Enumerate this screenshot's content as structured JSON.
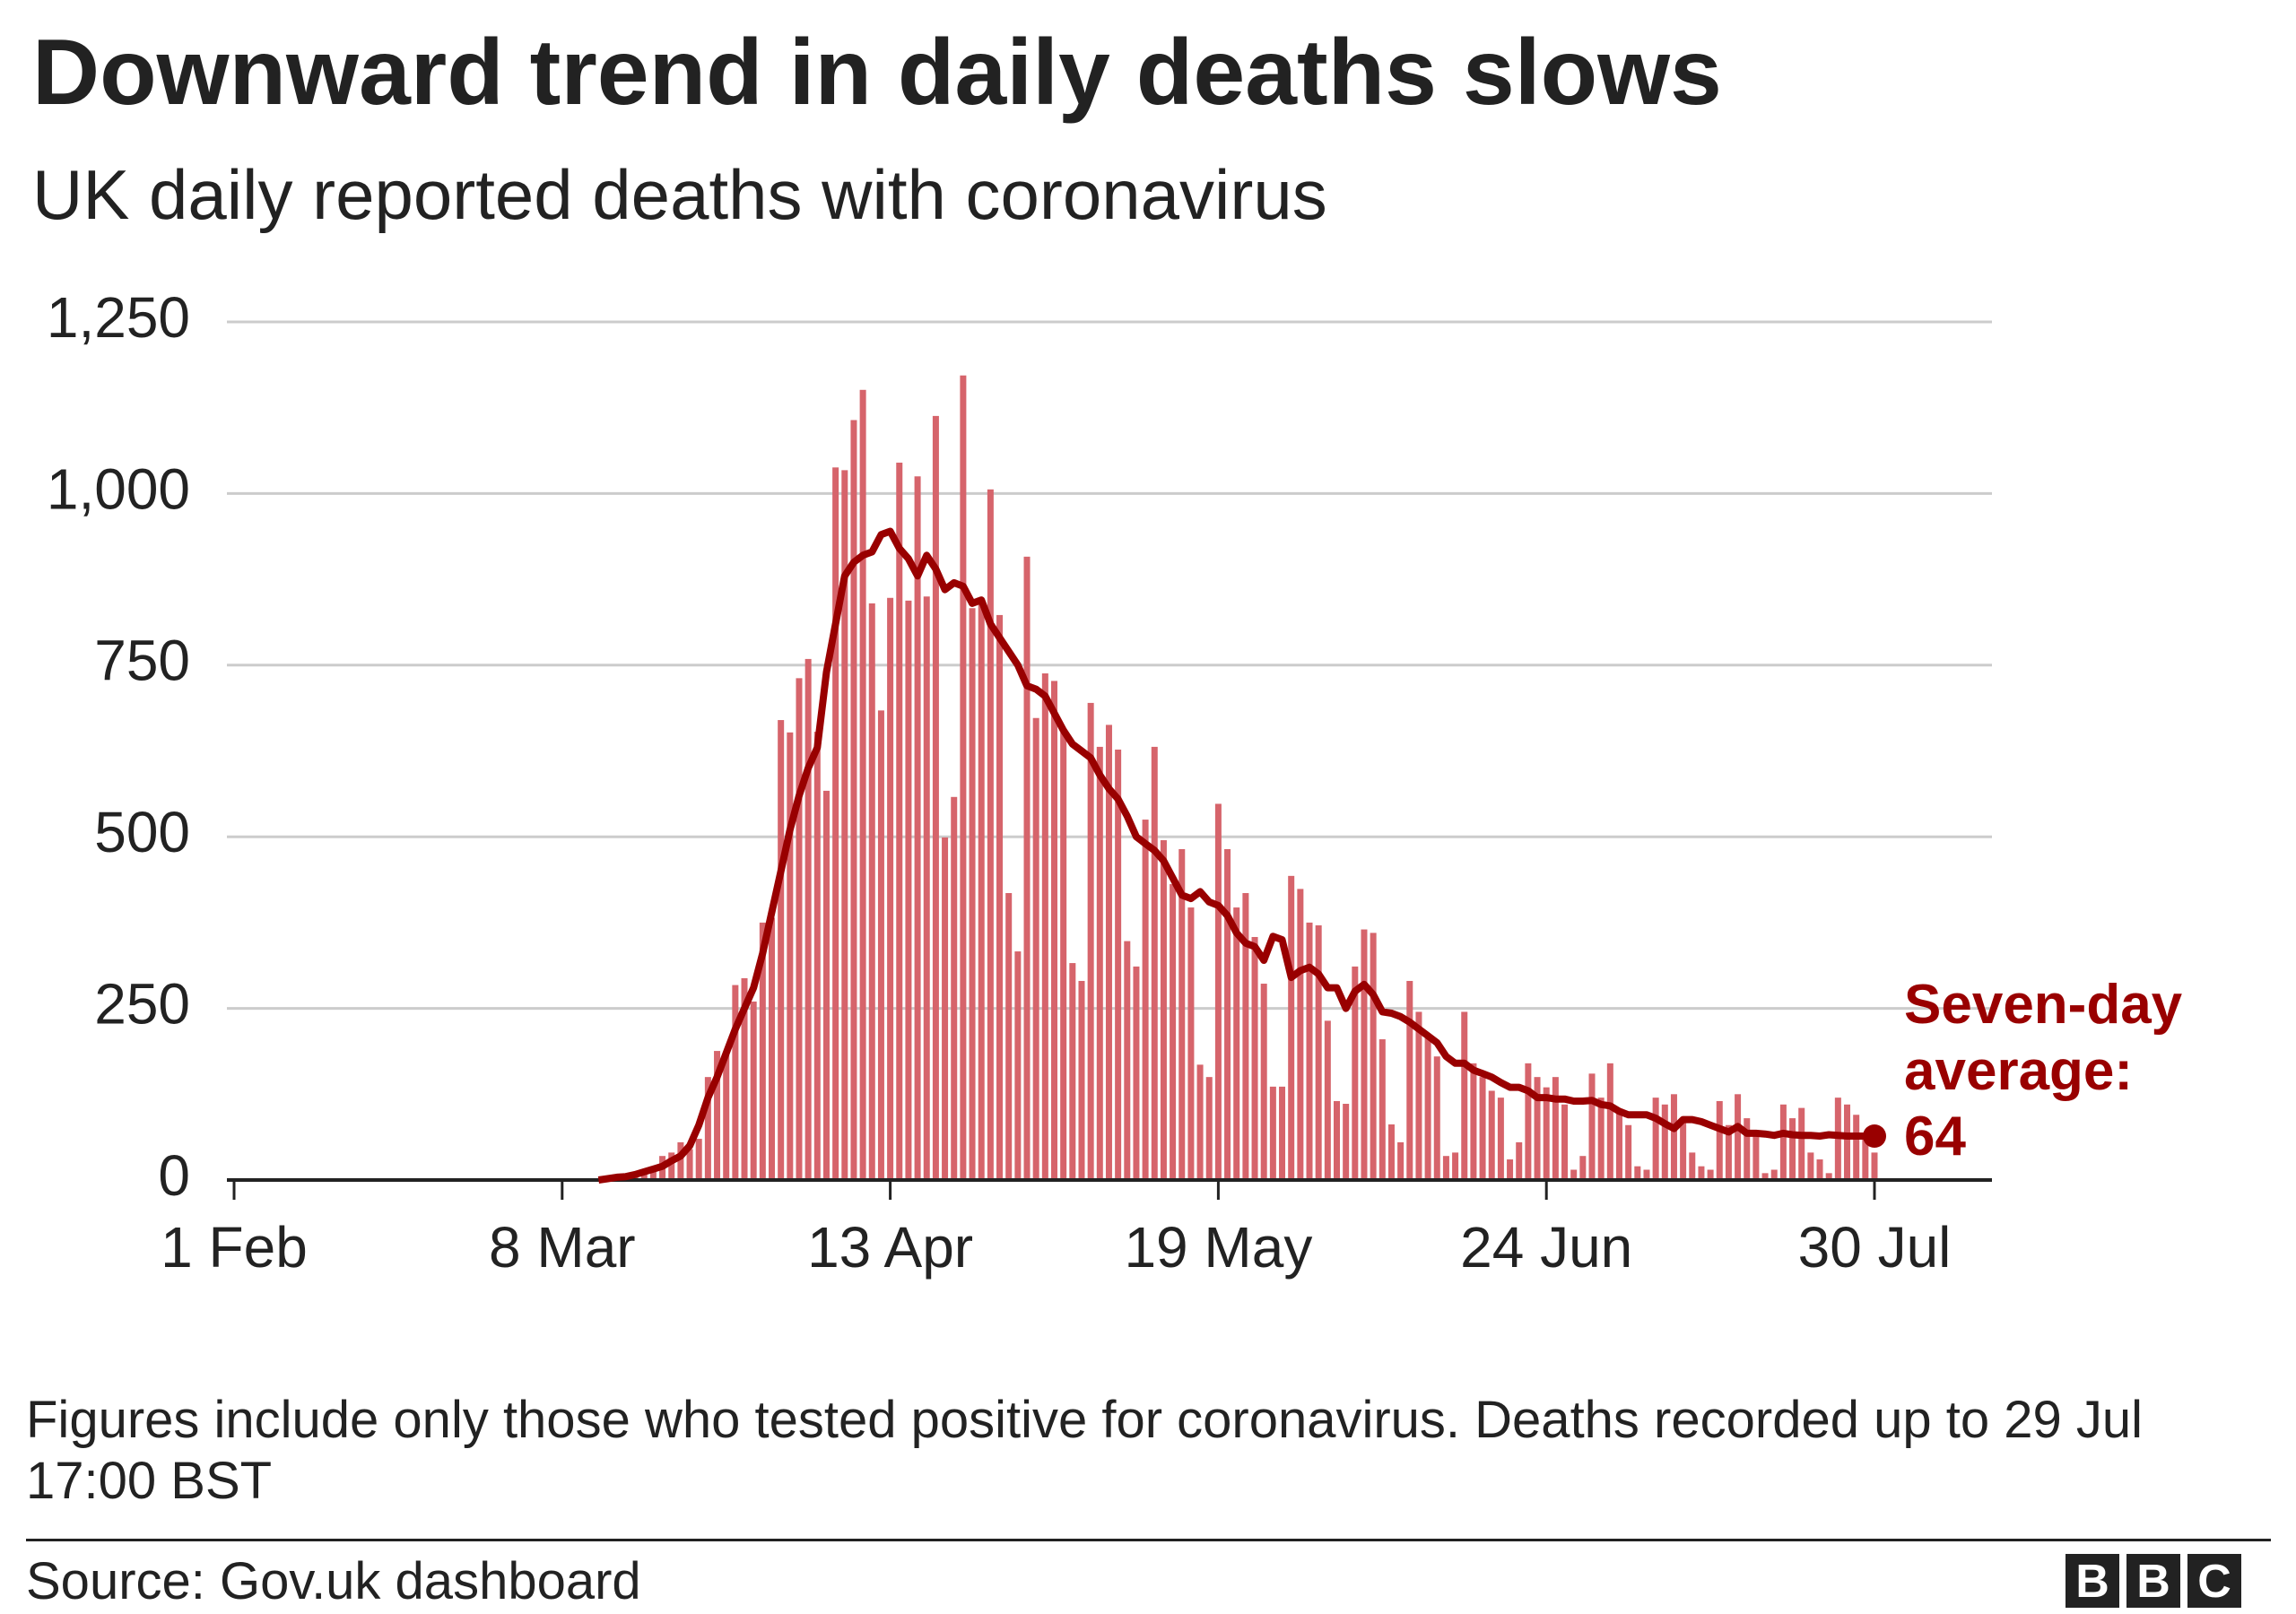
{
  "chart_data": {
    "type": "bar",
    "title": "Downward trend in daily deaths slows",
    "subtitle": "UK daily reported deaths with coronavirus",
    "categories": [
      "1 Feb",
      null,
      null,
      null,
      null,
      null,
      null,
      null,
      null,
      null,
      null,
      null,
      null,
      null,
      null,
      null,
      null,
      null,
      null,
      null,
      null,
      null,
      null,
      null,
      null,
      null,
      null,
      null,
      null,
      null,
      null,
      null,
      null,
      null,
      null,
      null,
      "8 Mar",
      null,
      null,
      null,
      null,
      null,
      null,
      null,
      null,
      null,
      null,
      null,
      null,
      null,
      null,
      null,
      null,
      null,
      null,
      null,
      null,
      null,
      null,
      null,
      null,
      null,
      null,
      null,
      null,
      null,
      null,
      null,
      null,
      null,
      null,
      null,
      "13 Apr",
      null,
      null,
      null,
      null,
      null,
      null,
      null,
      null,
      null,
      null,
      null,
      null,
      null,
      null,
      null,
      null,
      null,
      null,
      null,
      null,
      null,
      null,
      null,
      null,
      null,
      null,
      null,
      null,
      null,
      null,
      null,
      null,
      null,
      null,
      null,
      "19 May",
      null,
      null,
      null,
      null,
      null,
      null,
      null,
      null,
      null,
      null,
      null,
      null,
      null,
      null,
      null,
      null,
      null,
      null,
      null,
      null,
      null,
      null,
      null,
      null,
      null,
      null,
      null,
      null,
      null,
      null,
      null,
      null,
      null,
      null,
      null,
      "24 Jun",
      null,
      null,
      null,
      null,
      null,
      null,
      null,
      null,
      null,
      null,
      null,
      null,
      null,
      null,
      null,
      null,
      null,
      null,
      null,
      null,
      null,
      null,
      null,
      null,
      null,
      null,
      null,
      null,
      null,
      null,
      null,
      null,
      null,
      null,
      null,
      "30 Jul"
    ],
    "series": [
      {
        "type": "bar",
        "color": "#d6646b",
        "values": [
          0,
          0,
          0,
          0,
          0,
          0,
          0,
          0,
          0,
          0,
          0,
          0,
          0,
          0,
          0,
          0,
          0,
          0,
          0,
          0,
          0,
          0,
          0,
          0,
          0,
          0,
          0,
          0,
          0,
          0,
          0,
          0,
          0,
          0,
          0,
          0,
          0,
          0,
          0,
          0,
          1,
          2,
          4,
          6,
          8,
          15,
          20,
          35,
          40,
          55,
          45,
          60,
          150,
          188,
          183,
          284,
          294,
          260,
          375,
          382,
          670,
          652,
          731,
          759,
          653,
          567,
          1038,
          1034,
          1107,
          1151,
          840,
          684,
          848,
          1045,
          844,
          1025,
          850,
          1113,
          499,
          558,
          1172,
          833,
          844,
          1006,
          823,
          418,
          333,
          908,
          673,
          738,
          727,
          652,
          316,
          290,
          695,
          631,
          663,
          627,
          348,
          311,
          525,
          631,
          495,
          431,
          482,
          397,
          168,
          150,
          548,
          482,
          397,
          418,
          354,
          286,
          136,
          136,
          443,
          424,
          375,
          371,
          232,
          115,
          111,
          311,
          365,
          360,
          205,
          81,
          55,
          290,
          245,
          210,
          180,
          35,
          40,
          245,
          170,
          150,
          130,
          120,
          30,
          55,
          170,
          150,
          135,
          150,
          110,
          15,
          35,
          155,
          120,
          170,
          100,
          80,
          20,
          15,
          120,
          110,
          125,
          90,
          40,
          20,
          15,
          115,
          80,
          125,
          90,
          70,
          10,
          15,
          110,
          90,
          105,
          40,
          30,
          10,
          120,
          110,
          95,
          65,
          40
        ]
      },
      {
        "type": "line",
        "name": "Seven-day average:",
        "color": "#990000",
        "values": [
          null,
          null,
          null,
          null,
          null,
          null,
          null,
          null,
          null,
          null,
          null,
          null,
          null,
          null,
          null,
          null,
          null,
          null,
          null,
          null,
          null,
          null,
          null,
          null,
          null,
          null,
          null,
          null,
          null,
          null,
          null,
          null,
          null,
          null,
          null,
          null,
          null,
          null,
          null,
          null,
          0,
          2,
          4,
          5,
          8,
          12,
          16,
          20,
          28,
          35,
          50,
          80,
          120,
          150,
          185,
          220,
          250,
          280,
          330,
          390,
          450,
          510,
          560,
          600,
          630,
          740,
          810,
          880,
          900,
          910,
          915,
          940,
          945,
          920,
          905,
          880,
          910,
          890,
          860,
          870,
          865,
          840,
          845,
          810,
          790,
          770,
          750,
          720,
          715,
          705,
          680,
          655,
          635,
          625,
          615,
          590,
          570,
          555,
          530,
          500,
          490,
          480,
          465,
          440,
          415,
          410,
          420,
          405,
          400,
          385,
          360,
          345,
          340,
          320,
          355,
          350,
          295,
          305,
          310,
          300,
          280,
          280,
          250,
          275,
          285,
          270,
          245,
          243,
          238,
          230,
          220,
          210,
          200,
          180,
          170,
          170,
          160,
          155,
          150,
          142,
          135,
          135,
          130,
          120,
          120,
          118,
          118,
          115,
          115,
          116,
          110,
          108,
          100,
          95,
          95,
          95,
          90,
          82,
          75,
          88,
          88,
          85,
          80,
          75,
          70,
          78,
          68,
          68,
          67,
          65,
          68,
          66,
          65,
          65,
          64,
          66,
          65,
          64,
          64,
          64,
          64
        ]
      }
    ],
    "ylim": [
      0,
      1250
    ],
    "yticks": [
      0,
      {
        "value": 250,
        "label": "250"
      },
      {
        "value": 500,
        "label": "500"
      },
      {
        "value": 750,
        "label": "750"
      },
      {
        "value": 1000,
        "label": "1,000"
      },
      {
        "value": 1250,
        "label": "1,250"
      }
    ],
    "grid": true,
    "note": "Figures include only those who tested positive for coronavirus. Deaths recorded up to 29 Jul 17:00 BST",
    "source": "Source: Gov.uk dashboard",
    "logo": [
      "B",
      "B",
      "C"
    ]
  }
}
